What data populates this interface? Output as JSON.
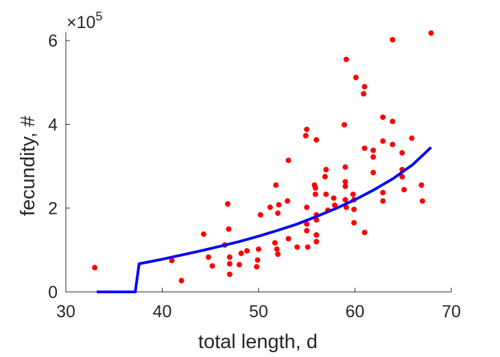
{
  "chart_data": {
    "type": "scatter",
    "xlabel": "total length, d",
    "ylabel": "fecundity, #",
    "x_ticks": [
      "30",
      "40",
      "50",
      "60",
      "70"
    ],
    "y_ticks": [
      "0",
      "2",
      "4",
      "6"
    ],
    "y_exponent": {
      "base": "×10",
      "power": "5"
    },
    "xlim": [
      30,
      70
    ],
    "ylim": [
      0,
      6.2
    ],
    "y_scale_factor": 100000,
    "grid": false,
    "box": false,
    "series": [
      {
        "type": "scatter",
        "color": "#ff0000",
        "points": [
          [
            33,
            0.58
          ],
          [
            41,
            0.75
          ],
          [
            42,
            0.27
          ],
          [
            44.3,
            1.38
          ],
          [
            44.8,
            0.83
          ],
          [
            45.2,
            0.62
          ],
          [
            46.5,
            1.12
          ],
          [
            46.8,
            2.1
          ],
          [
            46.9,
            1.5
          ],
          [
            47,
            0.83
          ],
          [
            47,
            0.67
          ],
          [
            47,
            0.42
          ],
          [
            48,
            0.65
          ],
          [
            48.2,
            0.92
          ],
          [
            48.8,
            0.98
          ],
          [
            49.8,
            0.6
          ],
          [
            49.9,
            0.76
          ],
          [
            50,
            1.02
          ],
          [
            50.2,
            1.84
          ],
          [
            51.2,
            2.02
          ],
          [
            51.7,
            1.17
          ],
          [
            51.8,
            2.55
          ],
          [
            51.9,
            1.02
          ],
          [
            52,
            0.9
          ],
          [
            52,
            1.88
          ],
          [
            52.1,
            2.08
          ],
          [
            53,
            2.17
          ],
          [
            53.1,
            3.14
          ],
          [
            53.1,
            1.27
          ],
          [
            54,
            1.07
          ],
          [
            54.9,
            3.73
          ],
          [
            55,
            3.88
          ],
          [
            55,
            2.02
          ],
          [
            55,
            1.62
          ],
          [
            55,
            1.46
          ],
          [
            55.1,
            1.07
          ],
          [
            55.8,
            2.55
          ],
          [
            55.9,
            2.48
          ],
          [
            55.9,
            2.33
          ],
          [
            56,
            3.63
          ],
          [
            56,
            1.84
          ],
          [
            56,
            1.72
          ],
          [
            56,
            1.36
          ],
          [
            56,
            1.2
          ],
          [
            56.9,
            2.75
          ],
          [
            57,
            2.92
          ],
          [
            57,
            2.33
          ],
          [
            57.2,
            1.95
          ],
          [
            57.8,
            2.24
          ],
          [
            57.9,
            2.07
          ],
          [
            58.9,
            3.99
          ],
          [
            59,
            2.98
          ],
          [
            59,
            2.63
          ],
          [
            59,
            2.52
          ],
          [
            59,
            2.2
          ],
          [
            59.1,
            5.55
          ],
          [
            59.1,
            2.02
          ],
          [
            59.8,
            2.33
          ],
          [
            59.9,
            2.2
          ],
          [
            59.9,
            1.97
          ],
          [
            59.9,
            1.65
          ],
          [
            60.1,
            5.12
          ],
          [
            60.9,
            4.73
          ],
          [
            61,
            4.9
          ],
          [
            61,
            3.43
          ],
          [
            61,
            1.42
          ],
          [
            61.9,
            3.38
          ],
          [
            61.9,
            3.22
          ],
          [
            61.9,
            2.85
          ],
          [
            62.9,
            4.17
          ],
          [
            62.9,
            3.6
          ],
          [
            62.9,
            2.37
          ],
          [
            62.9,
            2.17
          ],
          [
            63.9,
            6.02
          ],
          [
            63.9,
            4.07
          ],
          [
            63.9,
            3.52
          ],
          [
            64.9,
            3.32
          ],
          [
            64.9,
            2.92
          ],
          [
            64.9,
            2.75
          ],
          [
            65.1,
            2.44
          ],
          [
            65.9,
            3.67
          ],
          [
            66.9,
            2.55
          ],
          [
            67,
            2.17
          ],
          [
            67.9,
            6.18
          ]
        ]
      },
      {
        "type": "line",
        "color": "#0000ff",
        "points": [
          [
            33.2,
            0
          ],
          [
            37.2,
            0
          ],
          [
            37.6,
            0.67
          ],
          [
            40,
            0.78
          ],
          [
            42,
            0.88
          ],
          [
            44,
            0.98
          ],
          [
            46,
            1.09
          ],
          [
            48,
            1.2
          ],
          [
            50,
            1.33
          ],
          [
            52,
            1.47
          ],
          [
            54,
            1.62
          ],
          [
            56,
            1.8
          ],
          [
            58,
            1.99
          ],
          [
            60,
            2.2
          ],
          [
            62,
            2.44
          ],
          [
            64,
            2.71
          ],
          [
            66,
            3.04
          ],
          [
            67.9,
            3.45
          ]
        ]
      }
    ]
  }
}
